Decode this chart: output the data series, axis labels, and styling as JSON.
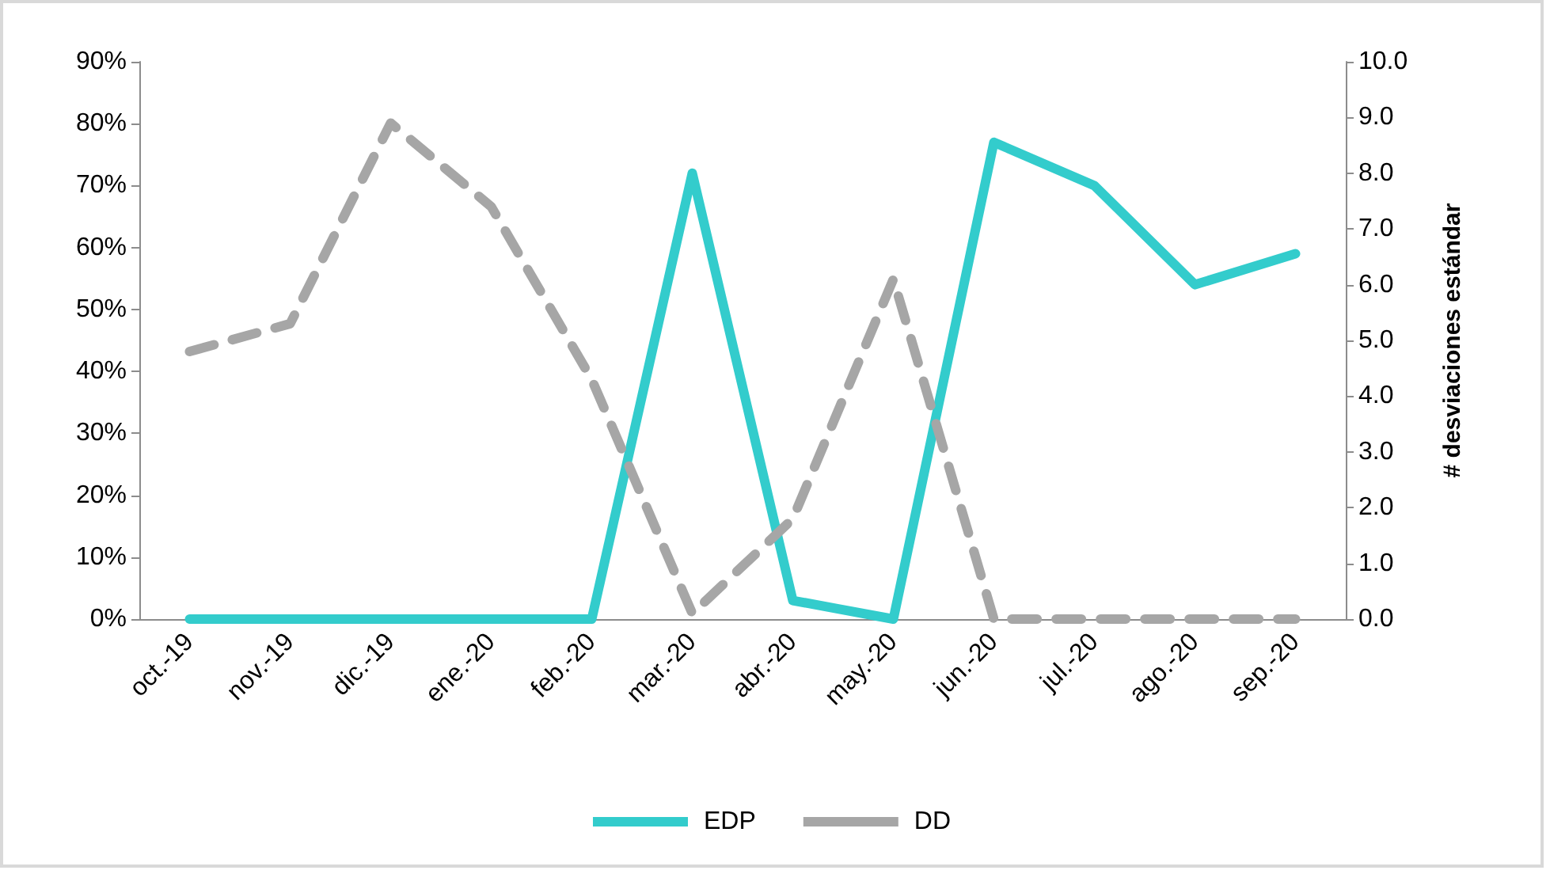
{
  "chart_data": {
    "type": "line",
    "y2label": "# desviaciones estándar",
    "categories": [
      "oct.-19",
      "nov.-19",
      "dic.-19",
      "ene.-20",
      "feb.-20",
      "mar.-20",
      "abr.-20",
      "may.-20",
      "jun.-20",
      "jul.-20",
      "ago.-20",
      "sep.-20"
    ],
    "series": [
      {
        "name": "EDP",
        "color": "#33cccc",
        "line_style": "solid",
        "values": [
          0,
          0,
          0,
          0,
          0,
          72,
          3,
          0,
          77,
          70,
          54,
          59
        ]
      },
      {
        "name": "DD",
        "color": "#a6a6a6",
        "line_style": "dashed",
        "axis": "y2",
        "values": [
          4.8,
          5.3,
          8.9,
          7.4,
          4.3,
          0.1,
          1.8,
          6.1,
          0,
          0,
          0,
          0
        ]
      }
    ],
    "ylim": [
      0,
      90
    ],
    "yticks": [
      {
        "value": 0,
        "label": "0%"
      },
      {
        "value": 10,
        "label": "10%"
      },
      {
        "value": 20,
        "label": "20%"
      },
      {
        "value": 30,
        "label": "30%"
      },
      {
        "value": 40,
        "label": "40%"
      },
      {
        "value": 50,
        "label": "50%"
      },
      {
        "value": 60,
        "label": "60%"
      },
      {
        "value": 70,
        "label": "70%"
      },
      {
        "value": 80,
        "label": "80%"
      },
      {
        "value": 90,
        "label": "90%"
      }
    ],
    "y2lim": [
      0,
      10
    ],
    "y2ticks": [
      {
        "value": 0,
        "label": "0.0"
      },
      {
        "value": 1,
        "label": "1.0"
      },
      {
        "value": 2,
        "label": "2.0"
      },
      {
        "value": 3,
        "label": "3.0"
      },
      {
        "value": 4,
        "label": "4.0"
      },
      {
        "value": 5,
        "label": "5.0"
      },
      {
        "value": 6,
        "label": "6.0"
      },
      {
        "value": 7,
        "label": "7.0"
      },
      {
        "value": 8,
        "label": "8.0"
      },
      {
        "value": 9,
        "label": "9.0"
      },
      {
        "value": 10,
        "label": "10.0"
      }
    ],
    "grid": false,
    "legend": "bottom",
    "marker": "none"
  }
}
